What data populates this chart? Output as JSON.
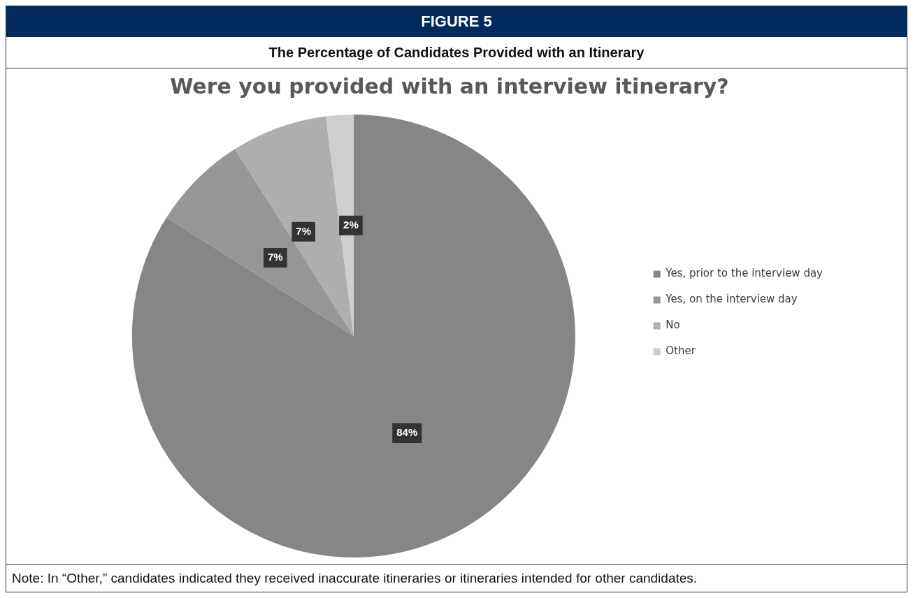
{
  "chart_data": {
    "type": "pie",
    "title": "Were you provided with an interview itinerary?",
    "subtitle": "The Percentage of Candidates Provided with an Itinerary",
    "annotations": [
      "FIGURE 5",
      "Note: In “Other,” candidates indicated they received inaccurate itineraries or itineraries intended for other candidates."
    ],
    "categories": [
      "Yes, prior to the interview day",
      "Yes, on the interview day",
      "No",
      "Other"
    ],
    "values": [
      84,
      7,
      7,
      2
    ],
    "value_labels": [
      "84%",
      "7%",
      "7%",
      "2%"
    ],
    "colors": [
      "#868686",
      "#969696",
      "#aeaeae",
      "#cecece"
    ],
    "legend": "right"
  }
}
